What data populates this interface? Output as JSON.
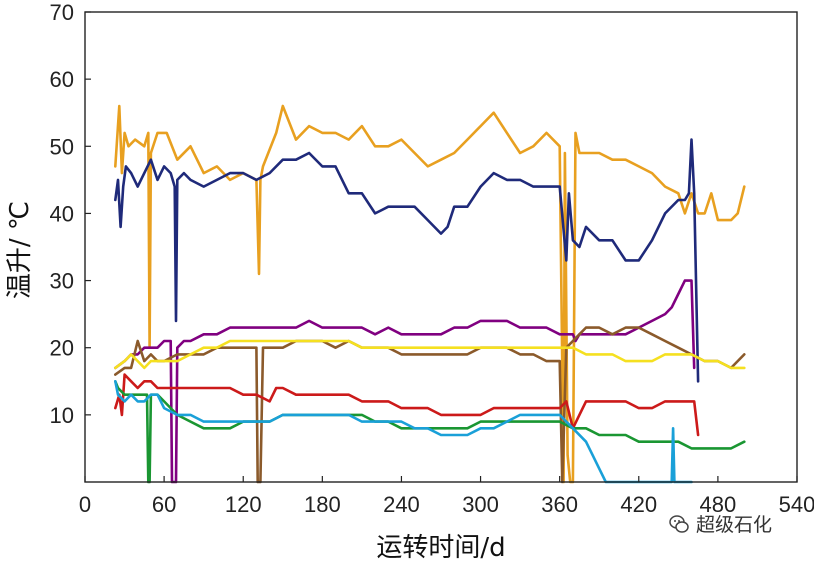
{
  "chart_data": {
    "type": "line",
    "xlabel": "运转时间/d",
    "ylabel": "温升/ ℃",
    "xlim": [
      0,
      540
    ],
    "ylim": [
      0,
      70
    ],
    "xticks": [
      0,
      60,
      120,
      180,
      240,
      300,
      360,
      420,
      480,
      540
    ],
    "yticks": [
      10,
      20,
      30,
      40,
      50,
      60,
      70
    ],
    "grid": false,
    "series": [
      {
        "color": "#E8A020",
        "x": [
          23,
          26,
          28,
          30,
          33,
          38,
          45,
          48,
          49,
          50,
          55,
          62,
          70,
          80,
          90,
          100,
          110,
          120,
          130,
          132,
          133,
          135,
          145,
          150,
          160,
          170,
          180,
          190,
          200,
          210,
          220,
          230,
          240,
          250,
          260,
          270,
          280,
          290,
          300,
          310,
          320,
          330,
          340,
          350,
          360,
          363,
          364,
          366,
          368,
          370,
          372,
          375,
          380,
          390,
          400,
          410,
          420,
          430,
          440,
          450,
          455,
          460,
          465,
          470,
          475,
          480,
          485,
          490,
          495,
          500
        ],
        "y": [
          47,
          56,
          46,
          52,
          50,
          51,
          50,
          52,
          20,
          49,
          52,
          52,
          48,
          50,
          46,
          47,
          45,
          46,
          45,
          31,
          45,
          47,
          52,
          56,
          51,
          53,
          52,
          52,
          51,
          53,
          50,
          50,
          51,
          49,
          47,
          48,
          49,
          51,
          53,
          55,
          52,
          49,
          50,
          52,
          50,
          0,
          49,
          4,
          0,
          0,
          52,
          49,
          49,
          49,
          48,
          48,
          47,
          46,
          44,
          43,
          40,
          43,
          40,
          40,
          43,
          39,
          39,
          39,
          40,
          44
        ]
      },
      {
        "color": "#1F2A7A",
        "x": [
          23,
          25,
          27,
          29,
          31,
          35,
          40,
          45,
          50,
          55,
          60,
          65,
          68,
          69,
          70,
          75,
          80,
          90,
          100,
          110,
          120,
          130,
          140,
          150,
          160,
          170,
          180,
          190,
          200,
          210,
          220,
          230,
          240,
          250,
          260,
          265,
          270,
          275,
          280,
          290,
          300,
          310,
          320,
          330,
          340,
          350,
          360,
          365,
          367,
          370,
          375,
          380,
          390,
          400,
          410,
          420,
          430,
          440,
          450,
          455,
          458,
          460,
          462,
          465
        ],
        "y": [
          42,
          45,
          38,
          44,
          47,
          46,
          44,
          46,
          48,
          45,
          47,
          46,
          44,
          24,
          45,
          46,
          45,
          44,
          45,
          46,
          46,
          45,
          46,
          48,
          48,
          49,
          47,
          47,
          43,
          43,
          40,
          41,
          41,
          41,
          39,
          38,
          37,
          38,
          41,
          41,
          44,
          46,
          45,
          45,
          44,
          44,
          44,
          33,
          43,
          36,
          35,
          38,
          36,
          36,
          33,
          33,
          36,
          40,
          42,
          42,
          43,
          51,
          43,
          15
        ]
      },
      {
        "color": "#800080",
        "x": [
          23,
          30,
          35,
          40,
          45,
          50,
          55,
          60,
          65,
          66,
          67,
          68,
          69,
          70,
          75,
          80,
          90,
          100,
          110,
          120,
          130,
          140,
          150,
          160,
          170,
          180,
          190,
          200,
          210,
          220,
          230,
          240,
          250,
          260,
          270,
          280,
          290,
          300,
          310,
          320,
          330,
          340,
          350,
          360,
          365,
          370,
          372,
          375,
          380,
          390,
          400,
          410,
          420,
          430,
          440,
          445,
          450,
          455,
          460,
          462
        ],
        "y": [
          17,
          18,
          19,
          19,
          20,
          20,
          20,
          21,
          21,
          0,
          0,
          0,
          0,
          20,
          21,
          21,
          22,
          22,
          23,
          23,
          23,
          23,
          23,
          23,
          24,
          23,
          23,
          23,
          23,
          22,
          23,
          22,
          22,
          22,
          22,
          23,
          23,
          24,
          24,
          24,
          23,
          23,
          23,
          22,
          22,
          22,
          21,
          22,
          22,
          22,
          22,
          22,
          23,
          24,
          25,
          26,
          28,
          30,
          30,
          17
        ]
      },
      {
        "color": "#8B5A2B",
        "x": [
          23,
          30,
          35,
          40,
          45,
          50,
          55,
          60,
          70,
          80,
          90,
          100,
          110,
          120,
          125,
          130,
          131,
          132,
          133,
          135,
          140,
          150,
          160,
          170,
          180,
          190,
          200,
          210,
          220,
          230,
          240,
          250,
          260,
          270,
          280,
          290,
          300,
          310,
          320,
          330,
          340,
          350,
          360,
          362,
          365,
          370,
          375,
          380,
          390,
          400,
          410,
          420,
          430,
          440,
          450,
          460,
          470,
          480,
          490,
          500
        ],
        "y": [
          16,
          17,
          17,
          21,
          18,
          19,
          18,
          18,
          19,
          19,
          19,
          20,
          20,
          20,
          20,
          20,
          0,
          0,
          0,
          20,
          20,
          20,
          21,
          21,
          21,
          20,
          21,
          20,
          20,
          20,
          19,
          19,
          19,
          19,
          19,
          19,
          20,
          20,
          20,
          19,
          19,
          18,
          18,
          0,
          20,
          21,
          22,
          23,
          23,
          22,
          23,
          23,
          22,
          21,
          20,
          19,
          18,
          18,
          17,
          19
        ]
      },
      {
        "color": "#F5E020",
        "x": [
          23,
          30,
          35,
          40,
          45,
          50,
          55,
          60,
          70,
          80,
          90,
          100,
          110,
          120,
          130,
          140,
          150,
          160,
          170,
          180,
          190,
          200,
          210,
          220,
          230,
          240,
          250,
          260,
          270,
          280,
          290,
          300,
          310,
          320,
          330,
          340,
          350,
          360,
          365,
          370,
          380,
          390,
          400,
          410,
          420,
          430,
          440,
          450,
          460,
          470,
          480,
          490,
          500
        ],
        "y": [
          17,
          18,
          19,
          18,
          17,
          18,
          18,
          18,
          18,
          19,
          20,
          20,
          21,
          21,
          21,
          21,
          21,
          21,
          21,
          21,
          21,
          21,
          20,
          20,
          20,
          20,
          20,
          20,
          20,
          20,
          20,
          20,
          20,
          20,
          20,
          20,
          20,
          20,
          20,
          20,
          19,
          19,
          19,
          18,
          18,
          18,
          19,
          19,
          19,
          18,
          18,
          17,
          17
        ]
      },
      {
        "color": "#CC1A1A",
        "x": [
          23,
          26,
          28,
          30,
          35,
          40,
          45,
          50,
          55,
          60,
          70,
          80,
          90,
          100,
          110,
          120,
          130,
          140,
          145,
          150,
          160,
          170,
          180,
          190,
          200,
          210,
          220,
          230,
          240,
          250,
          260,
          270,
          280,
          290,
          300,
          310,
          320,
          330,
          340,
          350,
          360,
          365,
          370,
          375,
          380,
          390,
          400,
          410,
          420,
          430,
          440,
          450,
          455,
          460,
          462,
          465
        ],
        "y": [
          11,
          13,
          10,
          16,
          15,
          14,
          15,
          15,
          14,
          14,
          14,
          14,
          14,
          14,
          14,
          13,
          13,
          12,
          14,
          14,
          13,
          13,
          13,
          13,
          13,
          12,
          12,
          12,
          11,
          11,
          11,
          10,
          10,
          10,
          10,
          11,
          11,
          11,
          11,
          11,
          11,
          12,
          8,
          10,
          12,
          12,
          12,
          12,
          11,
          11,
          12,
          12,
          12,
          12,
          12,
          7
        ]
      },
      {
        "color": "#1A9632",
        "x": [
          23,
          25,
          30,
          35,
          40,
          45,
          47,
          48,
          49,
          50,
          55,
          60,
          70,
          80,
          90,
          100,
          110,
          120,
          130,
          140,
          150,
          160,
          170,
          180,
          190,
          200,
          210,
          220,
          230,
          240,
          250,
          260,
          270,
          280,
          290,
          300,
          310,
          320,
          330,
          340,
          350,
          360,
          370,
          380,
          390,
          400,
          410,
          420,
          430,
          440,
          450,
          460,
          470,
          480,
          490,
          500
        ],
        "y": [
          15,
          14,
          13,
          13,
          13,
          13,
          13,
          0,
          0,
          13,
          13,
          12,
          10,
          9,
          8,
          8,
          8,
          9,
          9,
          9,
          10,
          10,
          10,
          10,
          10,
          10,
          10,
          9,
          9,
          8,
          8,
          8,
          8,
          8,
          8,
          9,
          9,
          9,
          9,
          9,
          9,
          9,
          8,
          8,
          7,
          7,
          7,
          6,
          6,
          6,
          6,
          5,
          5,
          5,
          5,
          6
        ]
      },
      {
        "color": "#1AA0D8",
        "x": [
          23,
          25,
          30,
          35,
          40,
          45,
          50,
          55,
          60,
          70,
          80,
          90,
          100,
          110,
          120,
          130,
          140,
          150,
          160,
          170,
          180,
          190,
          200,
          210,
          220,
          230,
          240,
          250,
          260,
          270,
          280,
          290,
          300,
          310,
          320,
          330,
          340,
          350,
          360,
          370,
          380,
          385,
          390,
          395,
          400,
          440,
          445,
          446,
          447,
          448,
          450,
          460
        ],
        "y": [
          15,
          13,
          12,
          13,
          12,
          12,
          13,
          13,
          11,
          10,
          10,
          9,
          9,
          9,
          9,
          9,
          9,
          10,
          10,
          10,
          10,
          10,
          10,
          9,
          9,
          9,
          9,
          8,
          8,
          7,
          7,
          7,
          8,
          8,
          9,
          10,
          10,
          10,
          10,
          8,
          6,
          4,
          2,
          0,
          0,
          0,
          0,
          8,
          0,
          0,
          0,
          0
        ]
      }
    ]
  },
  "watermark": {
    "text": "超级石化",
    "icon": "wechat-logo-icon"
  }
}
